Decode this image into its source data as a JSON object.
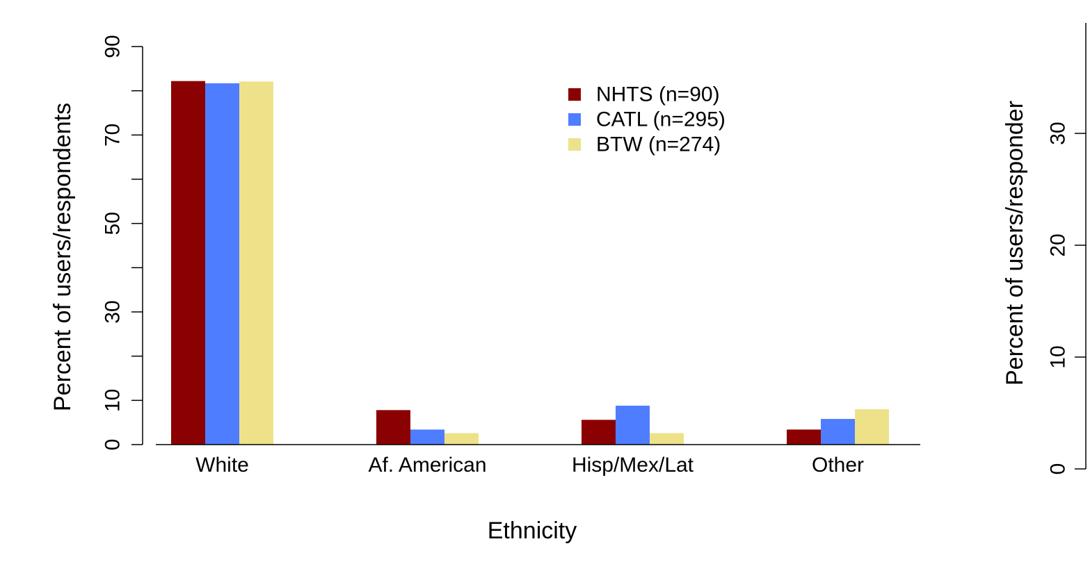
{
  "chart_data": [
    {
      "type": "bar",
      "title": "",
      "xlabel": "Ethnicity",
      "ylabel": "Percent of users/respondents",
      "ylim": [
        0,
        90
      ],
      "yticks": [
        "0",
        "10",
        "30",
        "50",
        "70",
        "90"
      ],
      "yticks_minor": [
        20,
        40,
        60,
        80
      ],
      "grid": false,
      "legend_position": "top-right",
      "categories": [
        "White",
        "Af. American",
        "Hisp/Mex/Lat",
        "Other"
      ],
      "series": [
        {
          "name": "NHTS (n=90)",
          "color": "#8b0000",
          "values": [
            82.2,
            7.8,
            5.6,
            3.4
          ]
        },
        {
          "name": "CATL (n=295)",
          "color": "#4f7dff",
          "values": [
            81.7,
            3.4,
            8.8,
            5.8
          ]
        },
        {
          "name": "BTW (n=274)",
          "color": "#ede28a",
          "values": [
            82.1,
            2.6,
            2.6,
            8.0
          ]
        }
      ]
    },
    {
      "type": "bar",
      "title": "",
      "ylabel": "Percent of users/responder",
      "ylim": [
        0,
        40
      ],
      "yticks": [
        "0",
        "10",
        "20",
        "30"
      ],
      "series": []
    }
  ]
}
